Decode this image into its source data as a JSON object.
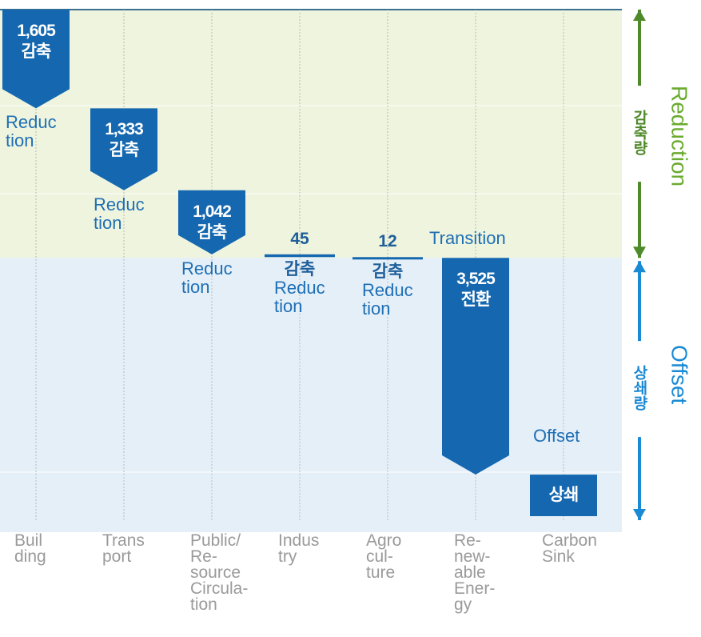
{
  "chart_data": {
    "type": "waterfall",
    "categories": [
      "Buil\nding",
      "Trans\nport",
      "Public/\nRe-\nsource\nCircula-\ntion",
      "Indus\ntry",
      "Agro\ncul-\nture",
      "Re-\nnew-\nable\nEner-\ngy",
      "Carbon\nSink"
    ],
    "series": [
      {
        "name": "Reduction",
        "name_ko": "감축량",
        "color": "#1568b0",
        "values": [
          1605,
          1333,
          1042,
          45,
          12,
          null,
          null
        ],
        "value_labels": [
          "1,605",
          "1,333",
          "1,042",
          "45",
          "12",
          null,
          null
        ],
        "tags": [
          "감축",
          "감축",
          "감축",
          "감축",
          "감축",
          null,
          null
        ],
        "notes": [
          "Reduc\ntion",
          "Reduc\ntion",
          "Reduc\ntion",
          "Reduc\ntion",
          "Reduc\ntion",
          null,
          null
        ]
      },
      {
        "name": "Offset",
        "name_ko": "상쇄량",
        "color": "#1568b0",
        "values": [
          null,
          null,
          null,
          null,
          null,
          3525,
          676
        ],
        "value_labels": [
          null,
          null,
          null,
          null,
          null,
          "3,525",
          null
        ],
        "tags": [
          null,
          null,
          null,
          null,
          null,
          "전환",
          "상쇄"
        ],
        "notes": [
          null,
          null,
          null,
          null,
          null,
          "Transition",
          "Offset"
        ]
      }
    ]
  }
}
